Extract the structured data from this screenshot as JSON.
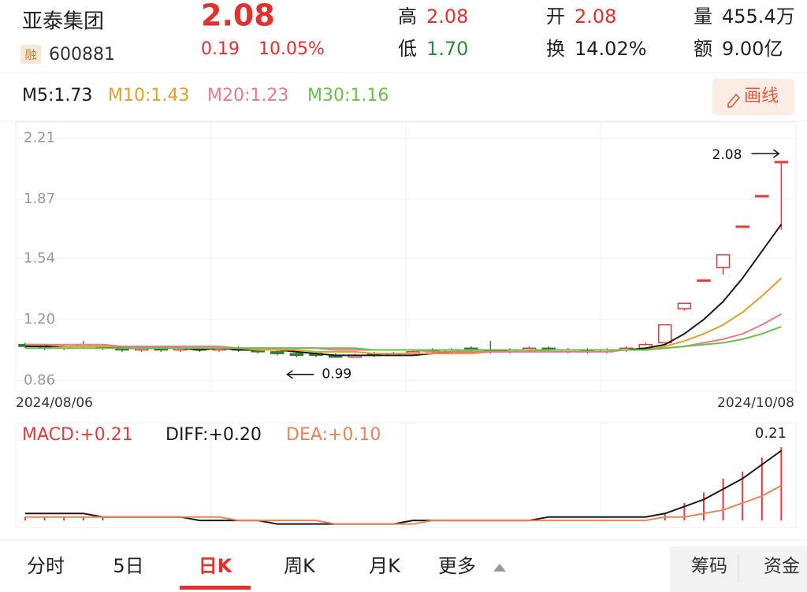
{
  "header": {
    "name": "亚泰集团",
    "badge": "融",
    "code": "600881",
    "price": "2.08",
    "change": "0.19",
    "change_pct": "10.05%",
    "stats": [
      {
        "label": "高",
        "value": "2.08"
      },
      {
        "label": "低",
        "value": "1.70"
      },
      {
        "label": "开",
        "value": "2.08"
      },
      {
        "label": "换",
        "value": "14.02%"
      },
      {
        "label": "量",
        "value": "455.4万"
      },
      {
        "label": "额",
        "value": "9.00亿"
      }
    ]
  },
  "draw_button": "画线",
  "chart_data": [
    {
      "type": "candlestick",
      "up_color": "#e03c3c",
      "down_color": "#2e7d32",
      "open": [
        1.06,
        1.05,
        1.04,
        1.05,
        1.05,
        1.04,
        1.03,
        1.04,
        1.03,
        1.04,
        1.03,
        1.04,
        1.03,
        1.02,
        1.01,
        1.01,
        1.0,
        0.99,
        1.01,
        1.0,
        1.01,
        1.03,
        1.02,
        1.04,
        1.03,
        1.02,
        1.03,
        1.04,
        1.02,
        1.03,
        1.02,
        1.03,
        1.04,
        1.07,
        1.26,
        1.42,
        1.49,
        1.72,
        1.89,
        2.08
      ],
      "high": [
        1.07,
        1.06,
        1.06,
        1.08,
        1.05,
        1.05,
        1.05,
        1.05,
        1.05,
        1.05,
        1.05,
        1.05,
        1.04,
        1.03,
        1.02,
        1.02,
        1.01,
        1.01,
        1.02,
        1.02,
        1.03,
        1.04,
        1.04,
        1.05,
        1.08,
        1.04,
        1.05,
        1.05,
        1.04,
        1.04,
        1.04,
        1.05,
        1.07,
        1.17,
        1.29,
        1.42,
        1.56,
        1.72,
        1.89,
        2.08
      ],
      "low": [
        1.04,
        1.03,
        1.03,
        1.04,
        1.03,
        1.02,
        1.02,
        1.02,
        1.02,
        1.02,
        1.02,
        1.02,
        1.01,
        1.0,
        0.99,
        0.99,
        0.99,
        0.99,
        0.99,
        1.0,
        1.0,
        1.01,
        1.01,
        1.02,
        1.01,
        1.01,
        1.02,
        1.02,
        1.01,
        1.01,
        1.01,
        1.02,
        1.03,
        1.06,
        1.25,
        1.41,
        1.45,
        1.72,
        1.89,
        1.7
      ],
      "close": [
        1.05,
        1.04,
        1.05,
        1.06,
        1.04,
        1.03,
        1.04,
        1.03,
        1.04,
        1.03,
        1.04,
        1.03,
        1.02,
        1.01,
        1.0,
        1.0,
        0.99,
        1.0,
        1.0,
        1.01,
        1.02,
        1.02,
        1.03,
        1.03,
        1.02,
        1.03,
        1.04,
        1.03,
        1.03,
        1.02,
        1.03,
        1.04,
        1.06,
        1.17,
        1.29,
        1.42,
        1.56,
        1.72,
        1.89,
        2.08
      ],
      "series": [
        {
          "name": "M5:1.73",
          "color": "#1a1a1a",
          "values": [
            1.05,
            1.05,
            1.05,
            1.05,
            1.05,
            1.04,
            1.04,
            1.04,
            1.04,
            1.03,
            1.04,
            1.03,
            1.03,
            1.03,
            1.02,
            1.01,
            1.0,
            1.0,
            1.0,
            1.0,
            1.0,
            1.01,
            1.02,
            1.02,
            1.02,
            1.03,
            1.03,
            1.03,
            1.03,
            1.03,
            1.03,
            1.03,
            1.04,
            1.06,
            1.12,
            1.2,
            1.3,
            1.43,
            1.58,
            1.73
          ]
        },
        {
          "name": "M10:1.43",
          "color": "#e0a030",
          "values": [
            1.06,
            1.06,
            1.05,
            1.05,
            1.05,
            1.05,
            1.05,
            1.04,
            1.04,
            1.04,
            1.04,
            1.04,
            1.03,
            1.03,
            1.03,
            1.02,
            1.02,
            1.02,
            1.01,
            1.01,
            1.01,
            1.01,
            1.01,
            1.01,
            1.02,
            1.02,
            1.02,
            1.03,
            1.03,
            1.03,
            1.03,
            1.03,
            1.03,
            1.05,
            1.08,
            1.12,
            1.17,
            1.24,
            1.33,
            1.43
          ]
        },
        {
          "name": "M20:1.23",
          "color": "#e87a8a",
          "values": [
            1.06,
            1.06,
            1.06,
            1.06,
            1.06,
            1.05,
            1.05,
            1.05,
            1.05,
            1.05,
            1.05,
            1.04,
            1.04,
            1.04,
            1.04,
            1.04,
            1.03,
            1.03,
            1.03,
            1.03,
            1.03,
            1.02,
            1.02,
            1.02,
            1.02,
            1.02,
            1.02,
            1.02,
            1.02,
            1.02,
            1.02,
            1.03,
            1.03,
            1.04,
            1.05,
            1.07,
            1.09,
            1.12,
            1.17,
            1.23
          ]
        },
        {
          "name": "M30:1.16",
          "color": "#6abf4b",
          "values": [
            1.04,
            1.04,
            1.04,
            1.04,
            1.04,
            1.04,
            1.04,
            1.04,
            1.04,
            1.04,
            1.04,
            1.04,
            1.04,
            1.04,
            1.04,
            1.04,
            1.04,
            1.04,
            1.03,
            1.03,
            1.03,
            1.03,
            1.03,
            1.03,
            1.03,
            1.03,
            1.03,
            1.03,
            1.03,
            1.03,
            1.03,
            1.03,
            1.03,
            1.04,
            1.05,
            1.06,
            1.07,
            1.09,
            1.12,
            1.16
          ]
        }
      ],
      "ylim": [
        0.8,
        2.3
      ],
      "yticks": [
        {
          "value": 0.86,
          "label": "0.86"
        },
        {
          "value": 1.2,
          "label": "1.20"
        },
        {
          "value": 1.54,
          "label": "1.54"
        },
        {
          "value": 1.87,
          "label": "1.87"
        },
        {
          "value": 2.21,
          "label": "2.21"
        }
      ],
      "grid": true,
      "date_labels": [
        "2024/08/06",
        "2024/10/08"
      ],
      "max_label": "2.08",
      "min_label": "0.99"
    },
    {
      "type": "macd",
      "series": [
        {
          "name": "MACD:+0.21",
          "color": "#e03c3c",
          "kind": "bar",
          "values": [
            0.01,
            0.01,
            0.01,
            0.01,
            0.01,
            0,
            0,
            0,
            0,
            0,
            0,
            0,
            0,
            0,
            0,
            0,
            0,
            0,
            0,
            0,
            0,
            0,
            0,
            0,
            0,
            0,
            0,
            0,
            0,
            0,
            0,
            0,
            0,
            0.02,
            0.05,
            0.08,
            0.12,
            0.14,
            0.18,
            0.21
          ]
        },
        {
          "name": "DIFF:+0.20",
          "color": "#1a1a1a",
          "kind": "line",
          "values": [
            0.02,
            0.02,
            0.02,
            0.02,
            0.01,
            0.01,
            0.01,
            0.01,
            0.01,
            0,
            0,
            0,
            0,
            -0.01,
            -0.01,
            -0.01,
            -0.01,
            -0.01,
            -0.01,
            -0.01,
            0,
            0,
            0,
            0,
            0,
            0,
            0,
            0.01,
            0.01,
            0.01,
            0.01,
            0.01,
            0.01,
            0.02,
            0.04,
            0.06,
            0.09,
            0.12,
            0.16,
            0.2
          ]
        },
        {
          "name": "DEA:+0.10",
          "color": "#e8825a",
          "kind": "line",
          "values": [
            0.01,
            0.01,
            0.01,
            0.01,
            0.01,
            0.01,
            0.01,
            0.01,
            0.01,
            0.01,
            0.01,
            0,
            0,
            0,
            0,
            0,
            -0.01,
            -0.01,
            -0.01,
            -0.01,
            -0.01,
            0,
            0,
            0,
            0,
            0,
            0,
            0,
            0,
            0,
            0,
            0,
            0,
            0.01,
            0.01,
            0.02,
            0.03,
            0.05,
            0.07,
            0.1
          ]
        }
      ],
      "ylim": [
        -0.02,
        0.28
      ],
      "max_label": "0.21"
    }
  ],
  "tabs": [
    "分时",
    "5日",
    "日K",
    "周K",
    "月K",
    "更多"
  ],
  "side_tabs": [
    "筹码",
    "资金"
  ]
}
